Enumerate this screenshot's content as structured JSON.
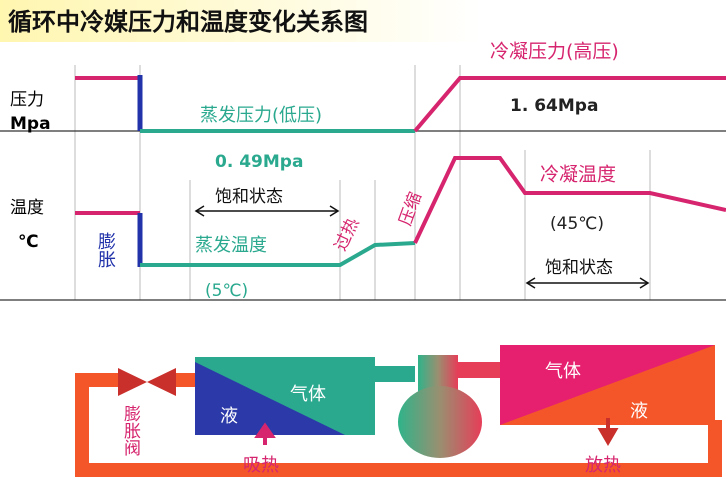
{
  "title": "循环中冷媒压力和温度变化关系图",
  "axis": {
    "pressure": "压力",
    "pressure_unit": "Mpa",
    "temperature": "温度",
    "temperature_unit": "℃"
  },
  "pressure": {
    "high_label": "冷凝压力(高压)",
    "high_value": "1. 64Mpa",
    "low_label": "蒸发压力(低压)",
    "low_value": "0. 49Mpa"
  },
  "temperature": {
    "evaporating_label": "蒸发温度",
    "evaporating_value": "(5℃)",
    "condensing_label": "冷凝温度",
    "condensing_value": "(45℃)"
  },
  "stages": {
    "expansion": "膨胀",
    "superheat": "过热",
    "compression": "压缩",
    "saturation_low": "饱和状态",
    "saturation_high": "饱和状态"
  },
  "components": {
    "valve": "膨胀阀",
    "evaporator": {
      "gas": "气体",
      "liquid": "液",
      "heat": "吸热"
    },
    "condenser": {
      "gas": "气体",
      "liquid": "液",
      "heat": "放热"
    }
  }
}
